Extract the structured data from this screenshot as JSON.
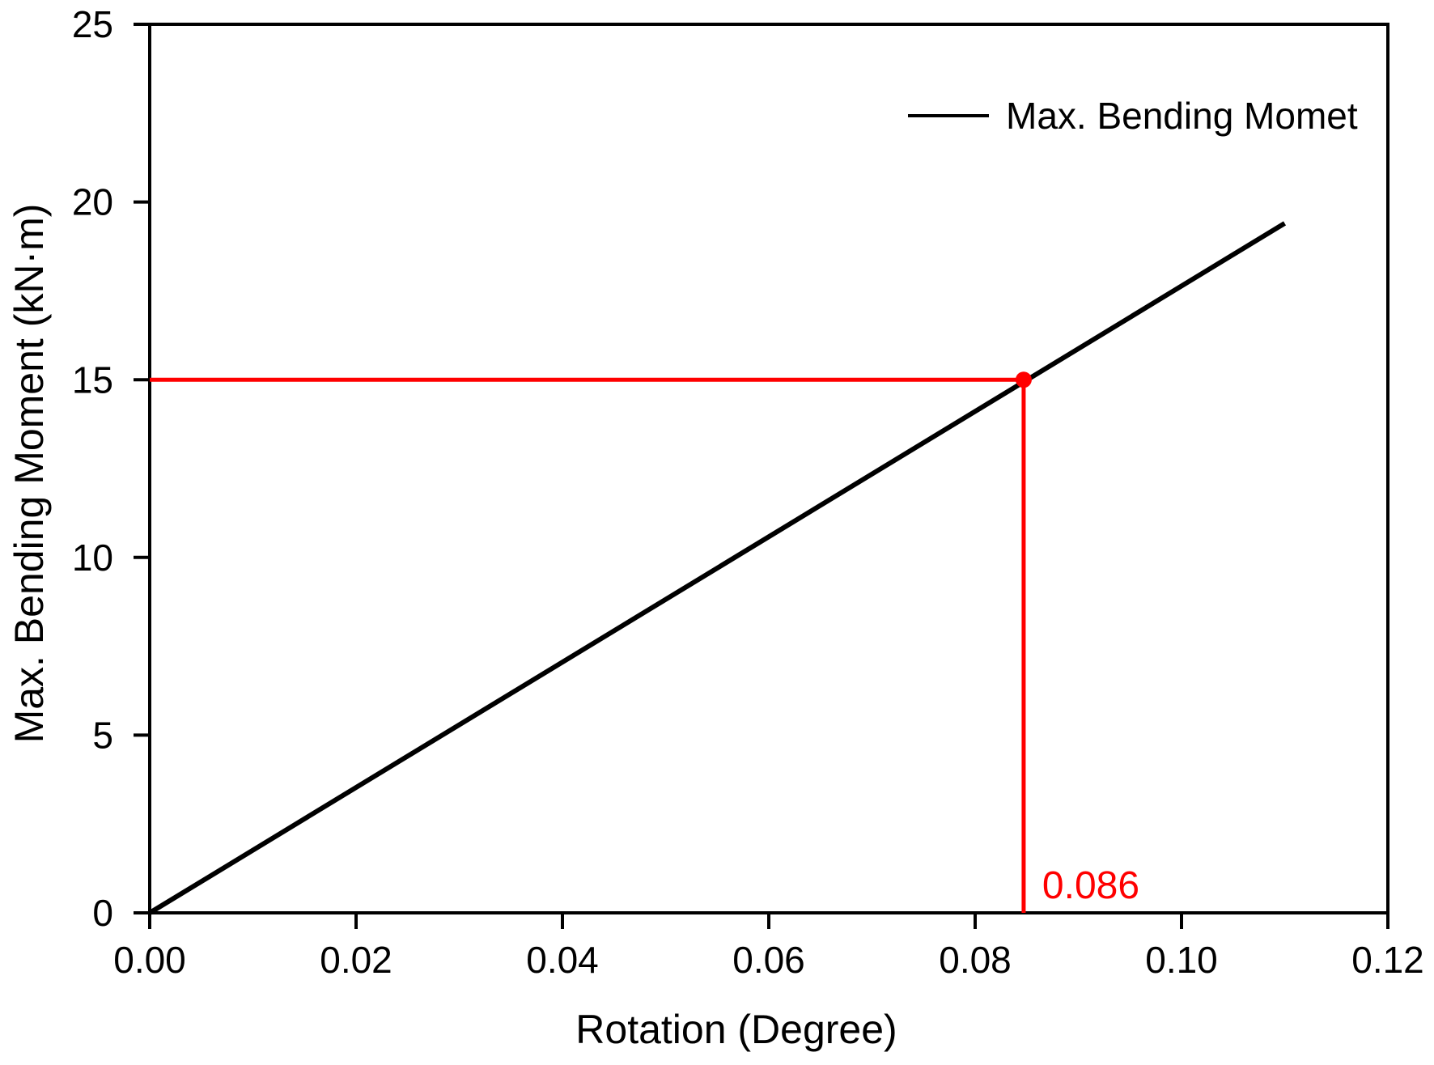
{
  "chart_data": {
    "type": "line",
    "title": "",
    "xlabel": "Rotation (Degree)",
    "ylabel": "Max. Bending Moment (kN·m)",
    "xlim": [
      0,
      0.12
    ],
    "ylim": [
      0,
      25
    ],
    "grid": false,
    "x_ticks": [
      {
        "v": 0.0,
        "label": "0.00"
      },
      {
        "v": 0.02,
        "label": "0.02"
      },
      {
        "v": 0.04,
        "label": "0.04"
      },
      {
        "v": 0.06,
        "label": "0.06"
      },
      {
        "v": 0.08,
        "label": "0.08"
      },
      {
        "v": 0.1,
        "label": "0.10"
      },
      {
        "v": 0.12,
        "label": "0.12"
      }
    ],
    "y_ticks": [
      {
        "v": 0,
        "label": "0"
      },
      {
        "v": 5,
        "label": "5"
      },
      {
        "v": 10,
        "label": "10"
      },
      {
        "v": 15,
        "label": "15"
      },
      {
        "v": 20,
        "label": "20"
      },
      {
        "v": 25,
        "label": "25"
      }
    ],
    "legend": {
      "position": "upper-right",
      "label": "Max. Bending Momet",
      "line_color": "#000000"
    },
    "series": [
      {
        "name": "Max. Bending Momet",
        "color": "#000000",
        "points": [
          [
            0.0,
            0.0
          ],
          [
            0.11,
            19.4
          ]
        ]
      }
    ],
    "annotation": {
      "x": 0.0847,
      "y": 15,
      "label": "0.086",
      "color": "#ff0000",
      "hline_from_x": 0,
      "vline_to_y": 0
    },
    "colors": {
      "axis": "#000000",
      "reference": "#ff0000",
      "background": "#ffffff"
    }
  }
}
